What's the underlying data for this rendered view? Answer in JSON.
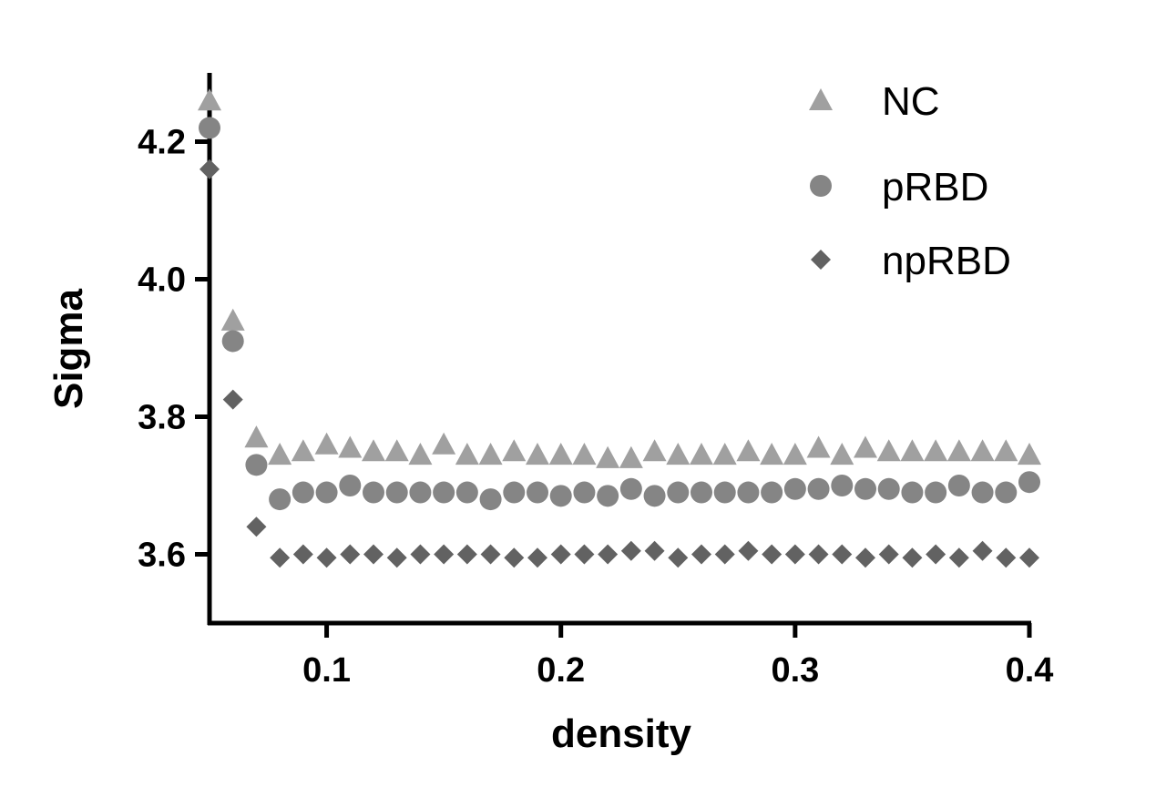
{
  "chart_data": {
    "type": "scatter",
    "title": "",
    "xlabel": "density",
    "ylabel": "Sigma",
    "xlim": [
      0.05,
      0.4
    ],
    "ylim": [
      3.5,
      4.3
    ],
    "xticks": [
      0.1,
      0.2,
      0.3,
      0.4
    ],
    "xtick_labels": [
      "0.1",
      "0.2",
      "0.3",
      "0.4"
    ],
    "yticks": [
      3.6,
      3.8,
      4.0,
      4.2
    ],
    "ytick_labels": [
      "3.6",
      "3.8",
      "4.0",
      "4.2"
    ],
    "grid": false,
    "legend_position": "top-right",
    "x": [
      0.05,
      0.06,
      0.07,
      0.08,
      0.09,
      0.1,
      0.11,
      0.12,
      0.13,
      0.14,
      0.15,
      0.16,
      0.17,
      0.18,
      0.19,
      0.2,
      0.21,
      0.22,
      0.23,
      0.24,
      0.25,
      0.26,
      0.27,
      0.28,
      0.29,
      0.3,
      0.31,
      0.32,
      0.33,
      0.34,
      0.35,
      0.36,
      0.37,
      0.38,
      0.39,
      0.4
    ],
    "series": [
      {
        "name": "NC",
        "marker": "triangle",
        "color": "#a0a0a0",
        "values": [
          4.26,
          3.94,
          3.77,
          3.745,
          3.75,
          3.76,
          3.755,
          3.75,
          3.75,
          3.745,
          3.76,
          3.745,
          3.745,
          3.75,
          3.745,
          3.745,
          3.745,
          3.74,
          3.74,
          3.75,
          3.745,
          3.745,
          3.745,
          3.75,
          3.745,
          3.745,
          3.755,
          3.745,
          3.755,
          3.75,
          3.75,
          3.75,
          3.75,
          3.75,
          3.75,
          3.745
        ]
      },
      {
        "name": "pRBD",
        "marker": "circle",
        "color": "#858585",
        "values": [
          4.22,
          3.91,
          3.73,
          3.68,
          3.69,
          3.69,
          3.7,
          3.69,
          3.69,
          3.69,
          3.69,
          3.69,
          3.68,
          3.69,
          3.69,
          3.685,
          3.69,
          3.685,
          3.695,
          3.685,
          3.69,
          3.69,
          3.69,
          3.69,
          3.69,
          3.695,
          3.695,
          3.7,
          3.695,
          3.695,
          3.69,
          3.69,
          3.7,
          3.69,
          3.69,
          3.705
        ]
      },
      {
        "name": "npRBD",
        "marker": "diamond",
        "color": "#626262",
        "values": [
          4.16,
          3.825,
          3.64,
          3.595,
          3.6,
          3.595,
          3.6,
          3.6,
          3.595,
          3.6,
          3.6,
          3.6,
          3.6,
          3.595,
          3.595,
          3.6,
          3.6,
          3.6,
          3.605,
          3.605,
          3.595,
          3.6,
          3.6,
          3.605,
          3.6,
          3.6,
          3.6,
          3.6,
          3.595,
          3.6,
          3.595,
          3.6,
          3.595,
          3.605,
          3.595,
          3.595
        ]
      }
    ]
  }
}
